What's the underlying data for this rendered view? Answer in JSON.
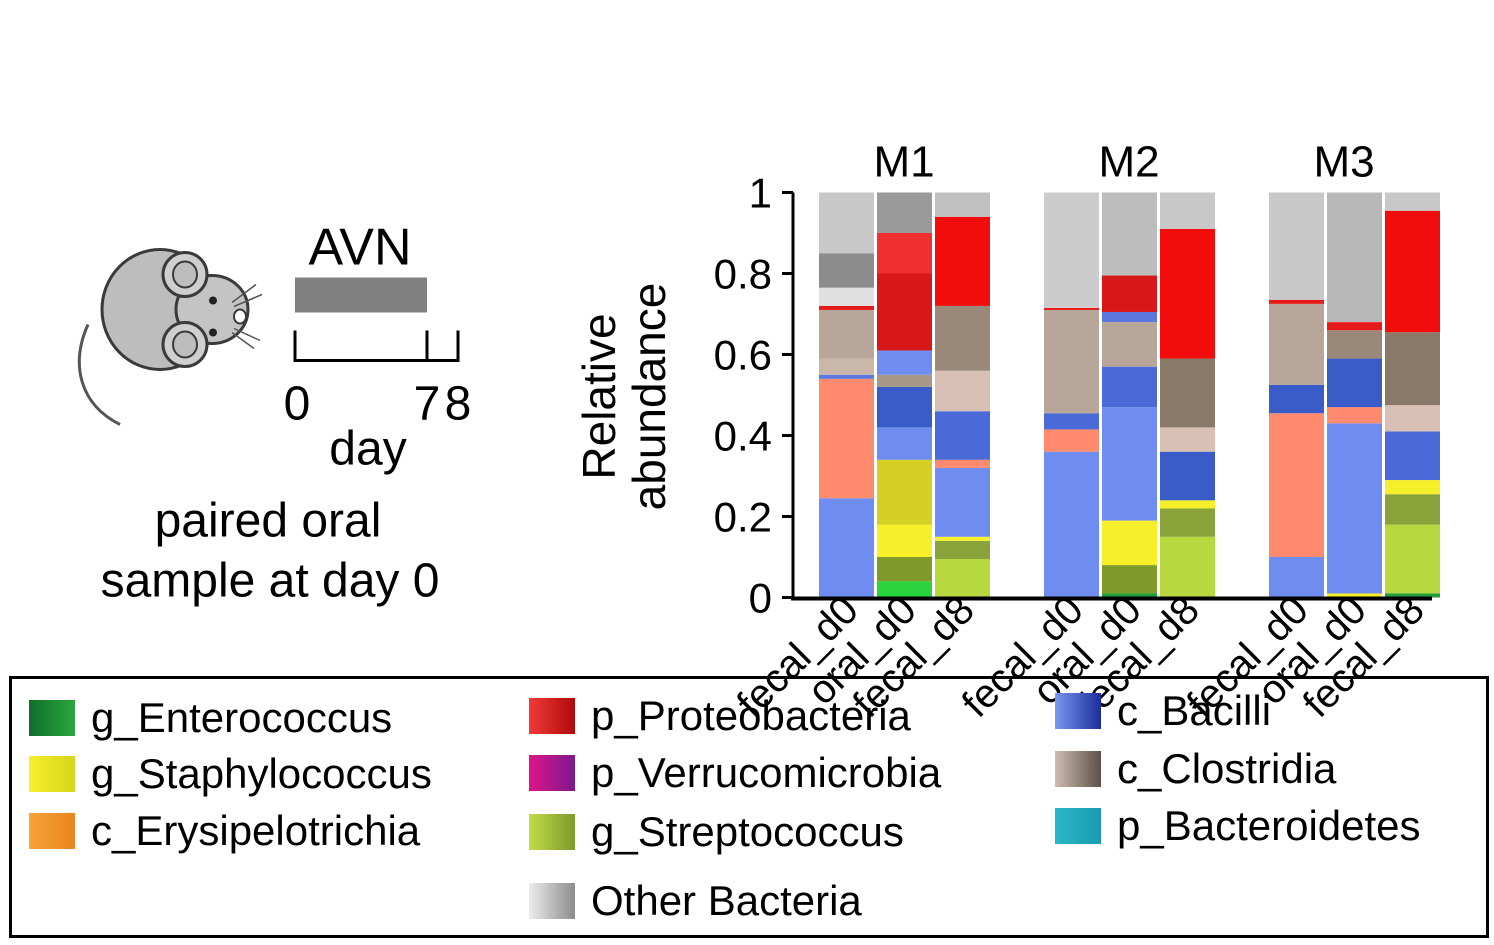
{
  "schematic": {
    "treatment_label": "AVN",
    "tick_start": "0",
    "tick_end": "7",
    "tick_end2": "8",
    "axis_label": "day",
    "caption_line1": "paired oral",
    "caption_line2": "sample at day 0",
    "treatment_bar_color": "#808080",
    "mouse_icon": "mouse-icon"
  },
  "chart_data": {
    "type": "bar",
    "stacked": true,
    "ylabel_line1": "Relative",
    "ylabel_line2": "abundance",
    "ylim": [
      0,
      1
    ],
    "yticks": [
      "0",
      "0.2",
      "0.4",
      "0.6",
      "0.8",
      "1"
    ],
    "groups": [
      "M1",
      "M2",
      "M3"
    ],
    "categories": [
      "fecal_d0",
      "oral_d0",
      "fecal_d8"
    ],
    "taxa_colors": {
      "g_Enterococcus": "#1f9e3a",
      "g_Staphylococcus": "#f5f02a",
      "c_Erysipelotrichia": "#f08a2c",
      "p_Proteobacteria": "#e61a1a",
      "p_Verrucomicrobia": "#b0158c",
      "g_Streptococcus": "#9cc435",
      "Other Bacteria": "#c8c8c8",
      "c_Bacilli": "#6f8cf0",
      "c_Clostridia": "#b8a69a",
      "p_Bacteroidetes": "#1fb0c4",
      "salmon": "#ff8a6e",
      "olive_yellow": "#d4d124"
    },
    "bars": [
      {
        "group": "M1",
        "sample": "fecal_d0",
        "segments": [
          {
            "taxon": "c_Bacilli",
            "value": 0.245,
            "color": "#6f8cf0"
          },
          {
            "taxon": "salmon",
            "value": 0.295,
            "color": "#ff8a6e"
          },
          {
            "taxon": "c_Bacilli",
            "value": 0.01,
            "color": "#5a78e0"
          },
          {
            "taxon": "c_Clostridia",
            "value": 0.04,
            "color": "#c9b8aa"
          },
          {
            "taxon": "c_Clostridia",
            "value": 0.12,
            "color": "#b8a69a"
          },
          {
            "taxon": "p_Proteobacteria",
            "value": 0.01,
            "color": "#e61a1a"
          },
          {
            "taxon": "Other Bacteria",
            "value": 0.045,
            "color": "#e0e0e0"
          },
          {
            "taxon": "Other Bacteria",
            "value": 0.085,
            "color": "#8c8c8c"
          },
          {
            "taxon": "Other Bacteria",
            "value": 0.15,
            "color": "#c8c8c8"
          }
        ]
      },
      {
        "group": "M1",
        "sample": "oral_d0",
        "segments": [
          {
            "taxon": "g_Enterococcus",
            "value": 0.04,
            "color": "#2bd43e"
          },
          {
            "taxon": "g_Streptococcus",
            "value": 0.06,
            "color": "#7f9a2a"
          },
          {
            "taxon": "g_Staphylococcus",
            "value": 0.08,
            "color": "#f5f02a"
          },
          {
            "taxon": "olive_yellow",
            "value": 0.16,
            "color": "#d4d124"
          },
          {
            "taxon": "c_Bacilli",
            "value": 0.08,
            "color": "#6f8cf0"
          },
          {
            "taxon": "c_Bacilli",
            "value": 0.1,
            "color": "#3a5cc8"
          },
          {
            "taxon": "c_Clostridia",
            "value": 0.03,
            "color": "#a89888"
          },
          {
            "taxon": "c_Bacilli",
            "value": 0.06,
            "color": "#6f8cf0"
          },
          {
            "taxon": "p_Proteobacteria",
            "value": 0.19,
            "color": "#d81818"
          },
          {
            "taxon": "p_Proteobacteria",
            "value": 0.1,
            "color": "#f03030"
          },
          {
            "taxon": "Other Bacteria",
            "value": 0.1,
            "color": "#9a9a9a"
          }
        ]
      },
      {
        "group": "M1",
        "sample": "fecal_d8",
        "segments": [
          {
            "taxon": "g_Streptococcus",
            "value": 0.095,
            "color": "#b8d840"
          },
          {
            "taxon": "g_Streptococcus",
            "value": 0.045,
            "color": "#8aa23a"
          },
          {
            "taxon": "g_Staphylococcus",
            "value": 0.01,
            "color": "#f5f02a"
          },
          {
            "taxon": "c_Bacilli",
            "value": 0.17,
            "color": "#6f8cf0"
          },
          {
            "taxon": "salmon",
            "value": 0.02,
            "color": "#ff8a6e"
          },
          {
            "taxon": "c_Bacilli",
            "value": 0.12,
            "color": "#4a6ad8"
          },
          {
            "taxon": "c_Clostridia",
            "value": 0.1,
            "color": "#d8c0b4"
          },
          {
            "taxon": "c_Clostridia",
            "value": 0.16,
            "color": "#9a8878"
          },
          {
            "taxon": "p_Proteobacteria",
            "value": 0.22,
            "color": "#f20c0c"
          },
          {
            "taxon": "Other Bacteria",
            "value": 0.06,
            "color": "#c0c0c0"
          }
        ]
      },
      {
        "group": "M2",
        "sample": "fecal_d0",
        "segments": [
          {
            "taxon": "c_Bacilli",
            "value": 0.36,
            "color": "#6f8cf0"
          },
          {
            "taxon": "salmon",
            "value": 0.055,
            "color": "#ff8a6e"
          },
          {
            "taxon": "c_Bacilli",
            "value": 0.04,
            "color": "#4a6ad8"
          },
          {
            "taxon": "c_Clostridia",
            "value": 0.255,
            "color": "#b8a69a"
          },
          {
            "taxon": "p_Proteobacteria",
            "value": 0.005,
            "color": "#e61a1a"
          },
          {
            "taxon": "Other Bacteria",
            "value": 0.285,
            "color": "#cccccc"
          }
        ]
      },
      {
        "group": "M2",
        "sample": "oral_d0",
        "segments": [
          {
            "taxon": "g_Enterococcus",
            "value": 0.01,
            "color": "#1f9e3a"
          },
          {
            "taxon": "g_Streptococcus",
            "value": 0.07,
            "color": "#7f9a2a"
          },
          {
            "taxon": "g_Staphylococcus",
            "value": 0.11,
            "color": "#f5f02a"
          },
          {
            "taxon": "c_Bacilli",
            "value": 0.28,
            "color": "#6f8cf0"
          },
          {
            "taxon": "c_Bacilli",
            "value": 0.1,
            "color": "#4a6ad8"
          },
          {
            "taxon": "c_Clostridia",
            "value": 0.11,
            "color": "#b8a69a"
          },
          {
            "taxon": "c_Bacilli",
            "value": 0.025,
            "color": "#5a78e0"
          },
          {
            "taxon": "p_Proteobacteria",
            "value": 0.09,
            "color": "#d81818"
          },
          {
            "taxon": "Other Bacteria",
            "value": 0.205,
            "color": "#bdbdbd"
          }
        ]
      },
      {
        "group": "M2",
        "sample": "fecal_d8",
        "segments": [
          {
            "taxon": "g_Streptococcus",
            "value": 0.15,
            "color": "#b8d840"
          },
          {
            "taxon": "g_Streptococcus",
            "value": 0.07,
            "color": "#8aa23a"
          },
          {
            "taxon": "g_Staphylococcus",
            "value": 0.02,
            "color": "#f5f02a"
          },
          {
            "taxon": "c_Bacilli",
            "value": 0.12,
            "color": "#3a5cc8"
          },
          {
            "taxon": "c_Clostridia",
            "value": 0.06,
            "color": "#d8c0b4"
          },
          {
            "taxon": "c_Clostridia",
            "value": 0.17,
            "color": "#8a7868"
          },
          {
            "taxon": "p_Proteobacteria",
            "value": 0.32,
            "color": "#f20c0c"
          },
          {
            "taxon": "Other Bacteria",
            "value": 0.09,
            "color": "#c8c8c8"
          }
        ]
      },
      {
        "group": "M3",
        "sample": "fecal_d0",
        "segments": [
          {
            "taxon": "c_Bacilli",
            "value": 0.1,
            "color": "#6f8cf0"
          },
          {
            "taxon": "salmon",
            "value": 0.355,
            "color": "#ff8a6e"
          },
          {
            "taxon": "c_Bacilli",
            "value": 0.07,
            "color": "#3a5cc8"
          },
          {
            "taxon": "c_Clostridia",
            "value": 0.2,
            "color": "#b8a69a"
          },
          {
            "taxon": "p_Proteobacteria",
            "value": 0.01,
            "color": "#e61a1a"
          },
          {
            "taxon": "Other Bacteria",
            "value": 0.265,
            "color": "#c8c8c8"
          }
        ]
      },
      {
        "group": "M3",
        "sample": "oral_d0",
        "segments": [
          {
            "taxon": "g_Staphylococcus",
            "value": 0.01,
            "color": "#f5f02a"
          },
          {
            "taxon": "c_Bacilli",
            "value": 0.42,
            "color": "#6f8cf0"
          },
          {
            "taxon": "salmon",
            "value": 0.04,
            "color": "#ff8a6e"
          },
          {
            "taxon": "c_Bacilli",
            "value": 0.12,
            "color": "#3a5cc8"
          },
          {
            "taxon": "c_Clostridia",
            "value": 0.07,
            "color": "#9a8878"
          },
          {
            "taxon": "p_Proteobacteria",
            "value": 0.02,
            "color": "#e61a1a"
          },
          {
            "taxon": "Other Bacteria",
            "value": 0.32,
            "color": "#b8b8b8"
          }
        ]
      },
      {
        "group": "M3",
        "sample": "fecal_d8",
        "segments": [
          {
            "taxon": "g_Enterococcus",
            "value": 0.01,
            "color": "#1f9e3a"
          },
          {
            "taxon": "g_Streptococcus",
            "value": 0.17,
            "color": "#b8d840"
          },
          {
            "taxon": "g_Streptococcus",
            "value": 0.075,
            "color": "#8aa23a"
          },
          {
            "taxon": "g_Staphylococcus",
            "value": 0.035,
            "color": "#f5f02a"
          },
          {
            "taxon": "c_Bacilli",
            "value": 0.12,
            "color": "#4a6ad8"
          },
          {
            "taxon": "c_Clostridia",
            "value": 0.065,
            "color": "#d8c0b4"
          },
          {
            "taxon": "c_Clostridia",
            "value": 0.18,
            "color": "#8a7868"
          },
          {
            "taxon": "p_Proteobacteria",
            "value": 0.3,
            "color": "#f20c0c"
          },
          {
            "taxon": "Other Bacteria",
            "value": 0.045,
            "color": "#c8c8c8"
          }
        ]
      }
    ]
  },
  "legend": {
    "items": [
      {
        "label": "g_Enterococcus",
        "color_from": "#0f6e2a",
        "color_to": "#2aa83e"
      },
      {
        "label": "g_Staphylococcus",
        "color_from": "#f5f02a",
        "color_to": "#d6d41e"
      },
      {
        "label": "c_Erysipelotrichia",
        "color_from": "#f7a43a",
        "color_to": "#e8851a"
      },
      {
        "label": "p_Proteobacteria",
        "color_from": "#f03a3a",
        "color_to": "#b00a0a"
      },
      {
        "label": "p_Verrucomicrobia",
        "color_from": "#e0148c",
        "color_to": "#7a1a8c"
      },
      {
        "label": "g_Streptococcus",
        "color_from": "#c0dc48",
        "color_to": "#7f9a2a"
      },
      {
        "label": "Other Bacteria",
        "color_from": "#ececec",
        "color_to": "#8c8c8c"
      },
      {
        "label": "c_Bacilli",
        "color_from": "#7a98f0",
        "color_to": "#1a2c9a"
      },
      {
        "label": "c_Clostridia",
        "color_from": "#cdbcb0",
        "color_to": "#5e5048"
      },
      {
        "label": "p_Bacteroidetes",
        "color_from": "#2ab8c8",
        "color_to": "#1a9ab0"
      }
    ]
  }
}
